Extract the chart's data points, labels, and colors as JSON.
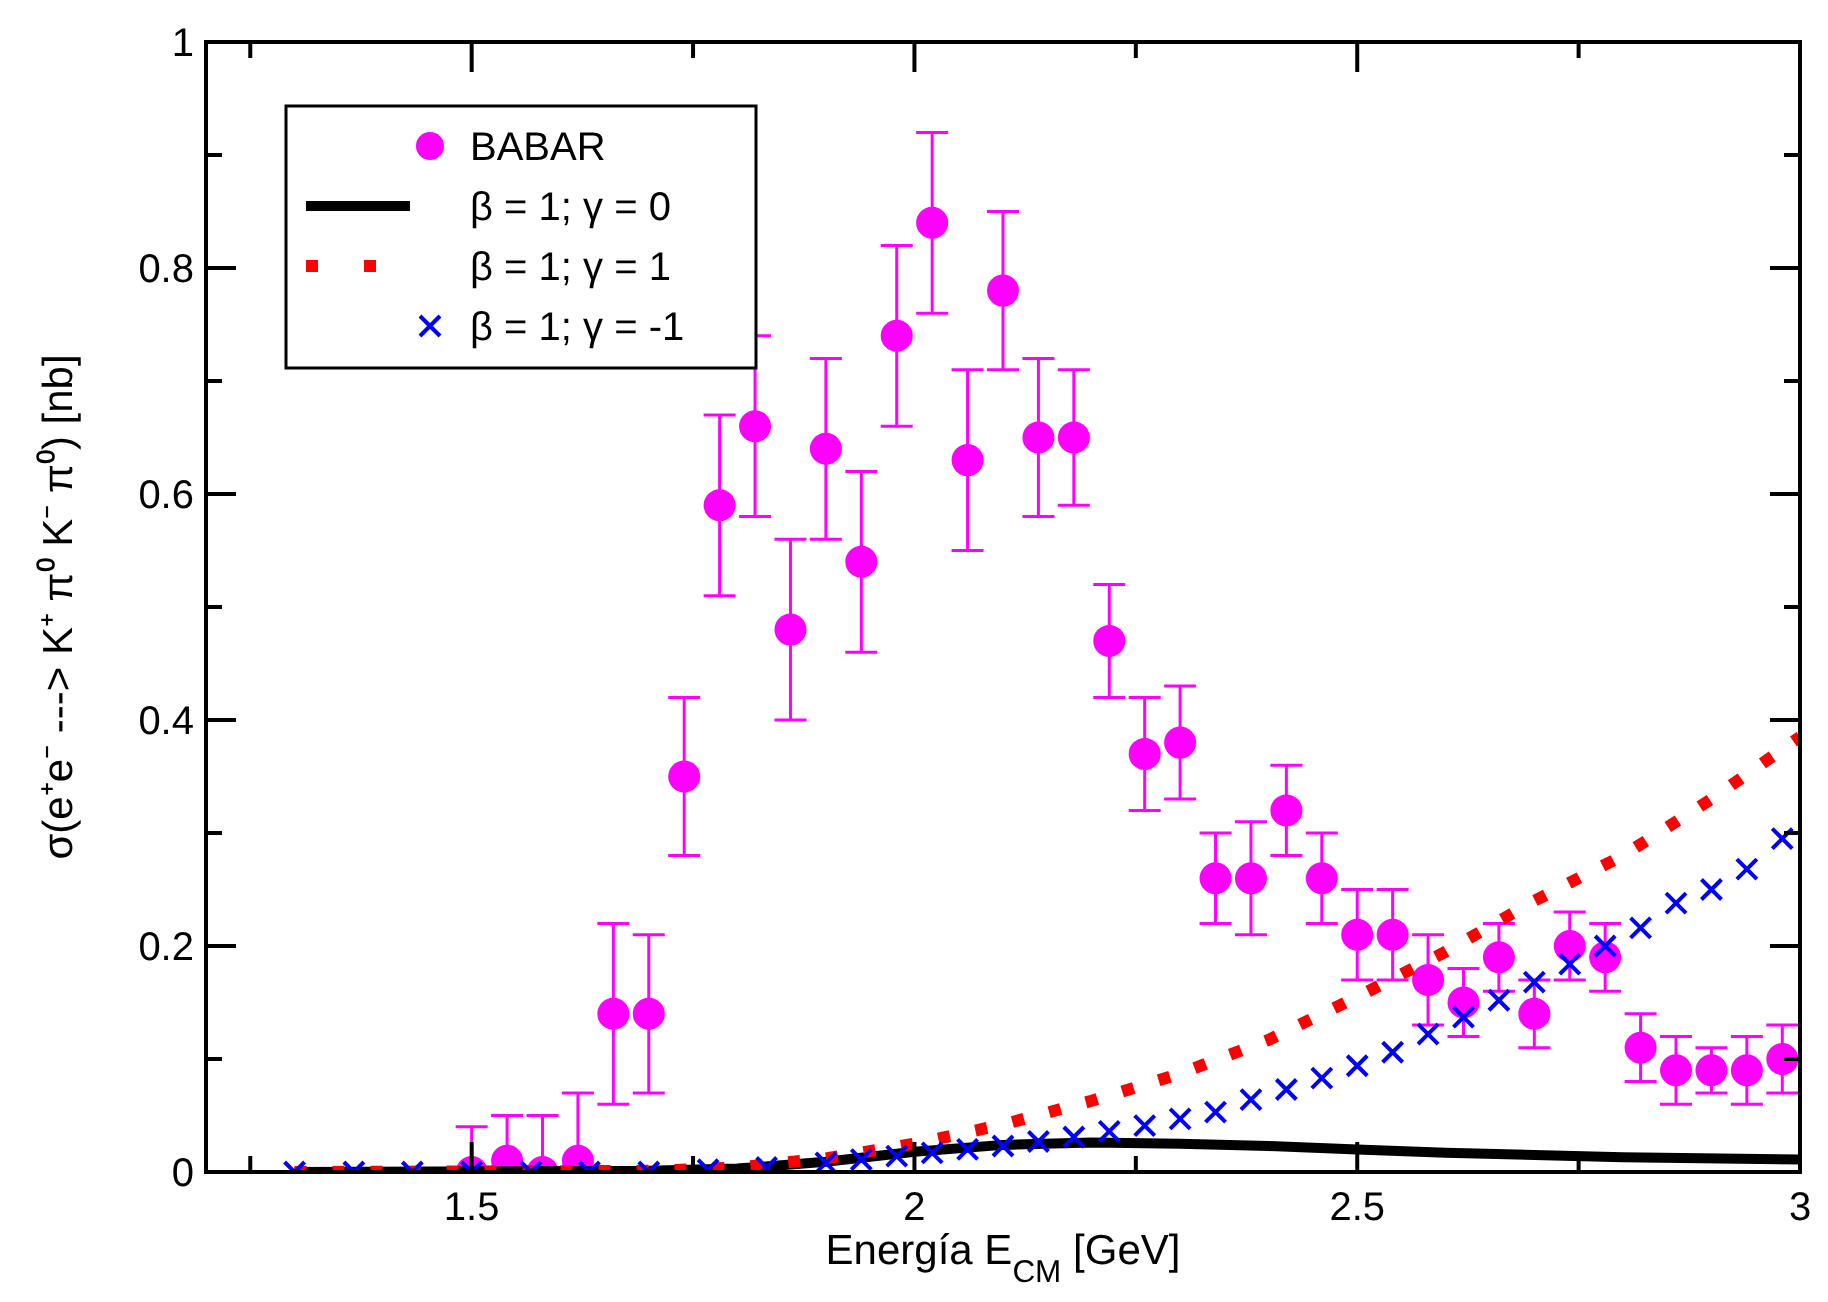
{
  "chart_data": {
    "type": "scatter",
    "xlabel": "Energía E$_{CM}$ [GeV]",
    "ylabel": "σ(e⁺e⁻ ---> K⁺ π⁰ K⁻ π⁰)  [nb]",
    "xlim": [
      1.2,
      3
    ],
    "ylim": [
      0,
      1
    ],
    "xticks": [
      {
        "value": 1.25,
        "label": null
      },
      1.5,
      {
        "value": 1.75,
        "label": null
      },
      2,
      {
        "value": 2.25,
        "label": null
      },
      2.5,
      {
        "value": 2.75,
        "label": null
      },
      3
    ],
    "yticks": [
      0,
      {
        "value": 0.1,
        "label": null
      },
      0.2,
      {
        "value": 0.3,
        "label": null
      },
      0.4,
      {
        "value": 0.5,
        "label": null
      },
      0.6,
      {
        "value": 0.7,
        "label": null
      },
      0.8,
      {
        "value": 0.9,
        "label": null
      },
      1
    ],
    "grid": false,
    "legend": "top left",
    "series": [
      {
        "name": "BABAR",
        "marker": "circle",
        "color": "#ff00ff",
        "x": [
          1.5,
          1.54,
          1.58,
          1.62,
          1.66,
          1.7,
          1.74,
          1.78,
          1.82,
          1.86,
          1.9,
          1.94,
          1.98,
          2.02,
          2.06,
          2.1,
          2.14,
          2.18,
          2.22,
          2.26,
          2.3,
          2.34,
          2.38,
          2.42,
          2.46,
          2.5,
          2.54,
          2.58,
          2.62,
          2.66,
          2.7,
          2.74,
          2.78,
          2.82,
          2.86,
          2.9,
          2.94,
          2.98
        ],
        "values": [
          0,
          0.01,
          0,
          0.01,
          0.14,
          0.14,
          0.35,
          0.59,
          0.66,
          0.48,
          0.64,
          0.54,
          0.74,
          0.84,
          0.63,
          0.78,
          0.65,
          0.65,
          0.47,
          0.37,
          0.38,
          0.26,
          0.26,
          0.32,
          0.26,
          0.21,
          0.21,
          0.17,
          0.15,
          0.19,
          0.14,
          0.2,
          0.19,
          0.11,
          0.09,
          0.09,
          0.09,
          0.1
        ],
        "errors": [
          0.04,
          0.04,
          0.05,
          0.06,
          0.08,
          0.07,
          0.07,
          0.08,
          0.08,
          0.08,
          0.08,
          0.08,
          0.08,
          0.08,
          0.08,
          0.07,
          0.07,
          0.06,
          0.05,
          0.05,
          0.05,
          0.04,
          0.05,
          0.04,
          0.04,
          0.04,
          0.04,
          0.04,
          0.03,
          0.03,
          0.03,
          0.03,
          0.03,
          0.03,
          0.03,
          0.02,
          0.03,
          0.03
        ]
      },
      {
        "name": "β = 1; γ = 0",
        "type": "line",
        "line_style": "solid",
        "color": "#000000",
        "x": [
          1.3,
          1.7,
          1.8,
          1.9,
          2.0,
          2.1,
          2.2,
          2.3,
          2.4,
          2.5,
          2.6,
          2.7,
          2.8,
          3.0
        ],
        "values": [
          0,
          0.001,
          0.003,
          0.009,
          0.018,
          0.024,
          0.026,
          0.025,
          0.023,
          0.02,
          0.017,
          0.015,
          0.013,
          0.011
        ]
      },
      {
        "name": "β = 1; γ = 1",
        "type": "line",
        "line_style": "dotted",
        "color": "#ff0000",
        "x": [
          1.3,
          1.7,
          1.8,
          1.9,
          2.0,
          2.1,
          2.2,
          2.3,
          2.4,
          2.5,
          2.6,
          2.7,
          2.8,
          2.9,
          3.0
        ],
        "values": [
          0,
          0.001,
          0.004,
          0.012,
          0.025,
          0.042,
          0.063,
          0.087,
          0.117,
          0.155,
          0.195,
          0.24,
          0.28,
          0.33,
          0.385
        ]
      },
      {
        "name": "β = 1; γ = -1",
        "marker": "cross",
        "color": "#0000ff",
        "x": [
          1.3,
          1.367,
          1.433,
          1.5,
          1.567,
          1.633,
          1.7,
          1.767,
          1.833,
          1.9,
          1.94,
          1.98,
          2.02,
          2.06,
          2.1,
          2.14,
          2.18,
          2.22,
          2.26,
          2.3,
          2.34,
          2.38,
          2.42,
          2.46,
          2.5,
          2.54,
          2.58,
          2.62,
          2.66,
          2.7,
          2.74,
          2.78,
          2.82,
          2.86,
          2.9,
          2.94,
          2.98
        ],
        "values": [
          0,
          0,
          0,
          0,
          0,
          0,
          0,
          0.002,
          0.004,
          0.008,
          0.011,
          0.014,
          0.017,
          0.02,
          0.023,
          0.027,
          0.031,
          0.036,
          0.041,
          0.047,
          0.053,
          0.064,
          0.073,
          0.083,
          0.094,
          0.106,
          0.122,
          0.137,
          0.152,
          0.168,
          0.184,
          0.2,
          0.216,
          0.238,
          0.25,
          0.268,
          0.295
        ]
      }
    ]
  }
}
